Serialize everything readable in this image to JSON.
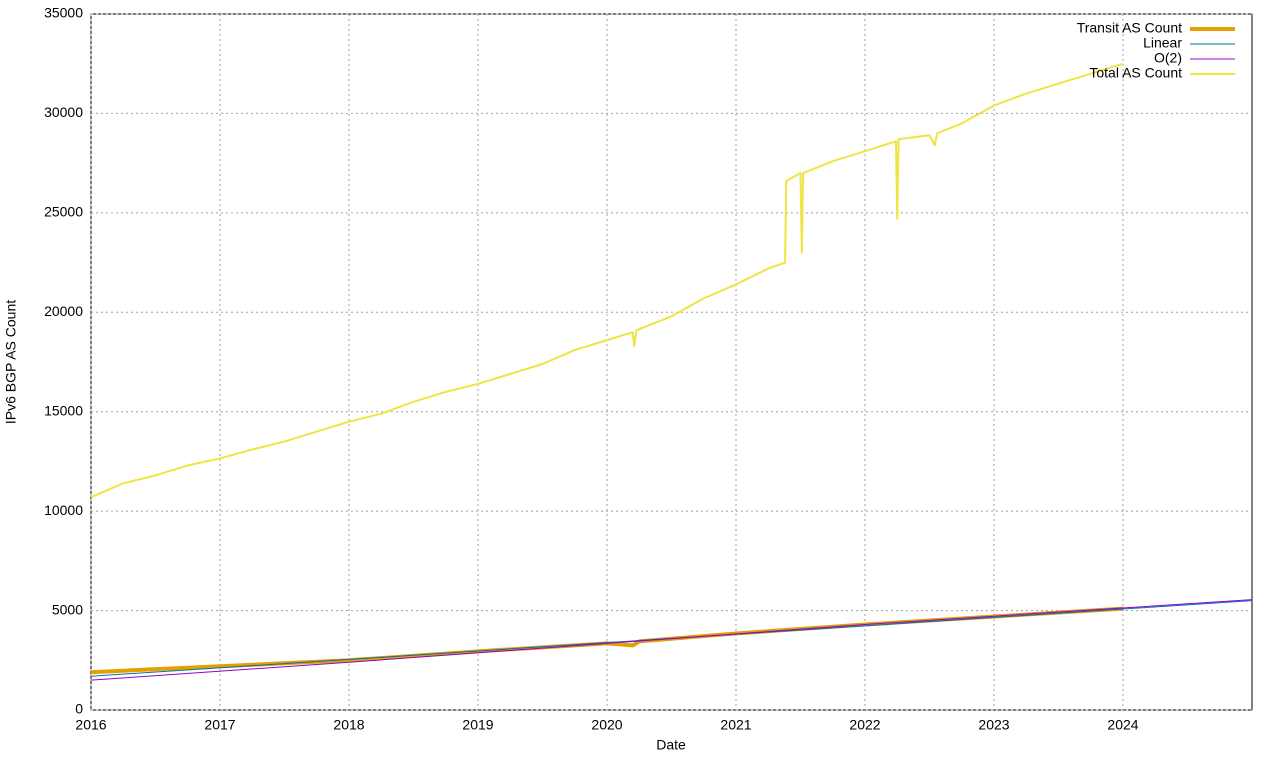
{
  "chart_data": {
    "type": "line",
    "x_label": "Date",
    "y_label": "IPv6 BGP AS Count",
    "xlim": [
      2016,
      2025
    ],
    "xticks": [
      2016,
      2017,
      2018,
      2019,
      2020,
      2021,
      2022,
      2023,
      2024
    ],
    "ylim": [
      0,
      35000
    ],
    "yticks": [
      0,
      5000,
      10000,
      15000,
      20000,
      25000,
      30000,
      35000
    ],
    "grid": true,
    "legend": "top-right",
    "series": [
      {
        "name": "Transit AS Count",
        "color": "#e69f00",
        "width": 4,
        "x": [
          2016,
          2017,
          2018,
          2019,
          2020,
          2020.2,
          2020.25,
          2021,
          2022,
          2023,
          2024
        ],
        "values": [
          1900,
          2200,
          2500,
          2950,
          3350,
          3250,
          3450,
          3850,
          4300,
          4700,
          5100
        ]
      },
      {
        "name": "Linear",
        "color": "#0072b2",
        "width": 1,
        "x": [
          2016,
          2025
        ],
        "values": [
          1700,
          5500
        ]
      },
      {
        "name": "O(2)",
        "color": "#9400d3",
        "width": 1,
        "x": [
          2016,
          2018,
          2020,
          2022,
          2025
        ],
        "values": [
          1500,
          2400,
          3350,
          4300,
          5550
        ]
      },
      {
        "name": "Total AS Count",
        "color": "#f0e442",
        "width": 2,
        "x": [
          2016,
          2016.25,
          2016.5,
          2016.75,
          2017,
          2017.25,
          2017.5,
          2017.75,
          2018,
          2018.25,
          2018.5,
          2018.75,
          2019,
          2019.25,
          2019.5,
          2019.75,
          2020,
          2020.2,
          2020.21,
          2020.23,
          2020.5,
          2020.75,
          2021,
          2021.25,
          2021.38,
          2021.39,
          2021.5,
          2021.51,
          2021.52,
          2021.75,
          2022,
          2022.24,
          2022.25,
          2022.26,
          2022.5,
          2022.54,
          2022.56,
          2022.75,
          2023,
          2023.25,
          2023.5,
          2023.75,
          2024
        ],
        "values": [
          10700,
          11400,
          11800,
          12300,
          12650,
          13100,
          13500,
          14000,
          14500,
          14900,
          15500,
          16000,
          16400,
          16900,
          17400,
          18100,
          18600,
          19000,
          18300,
          19100,
          19800,
          20700,
          21400,
          22200,
          22500,
          26600,
          27000,
          23000,
          27000,
          27600,
          28100,
          28600,
          24700,
          28700,
          28900,
          28400,
          29000,
          29500,
          30400,
          31000,
          31500,
          32000,
          32500
        ]
      }
    ]
  }
}
